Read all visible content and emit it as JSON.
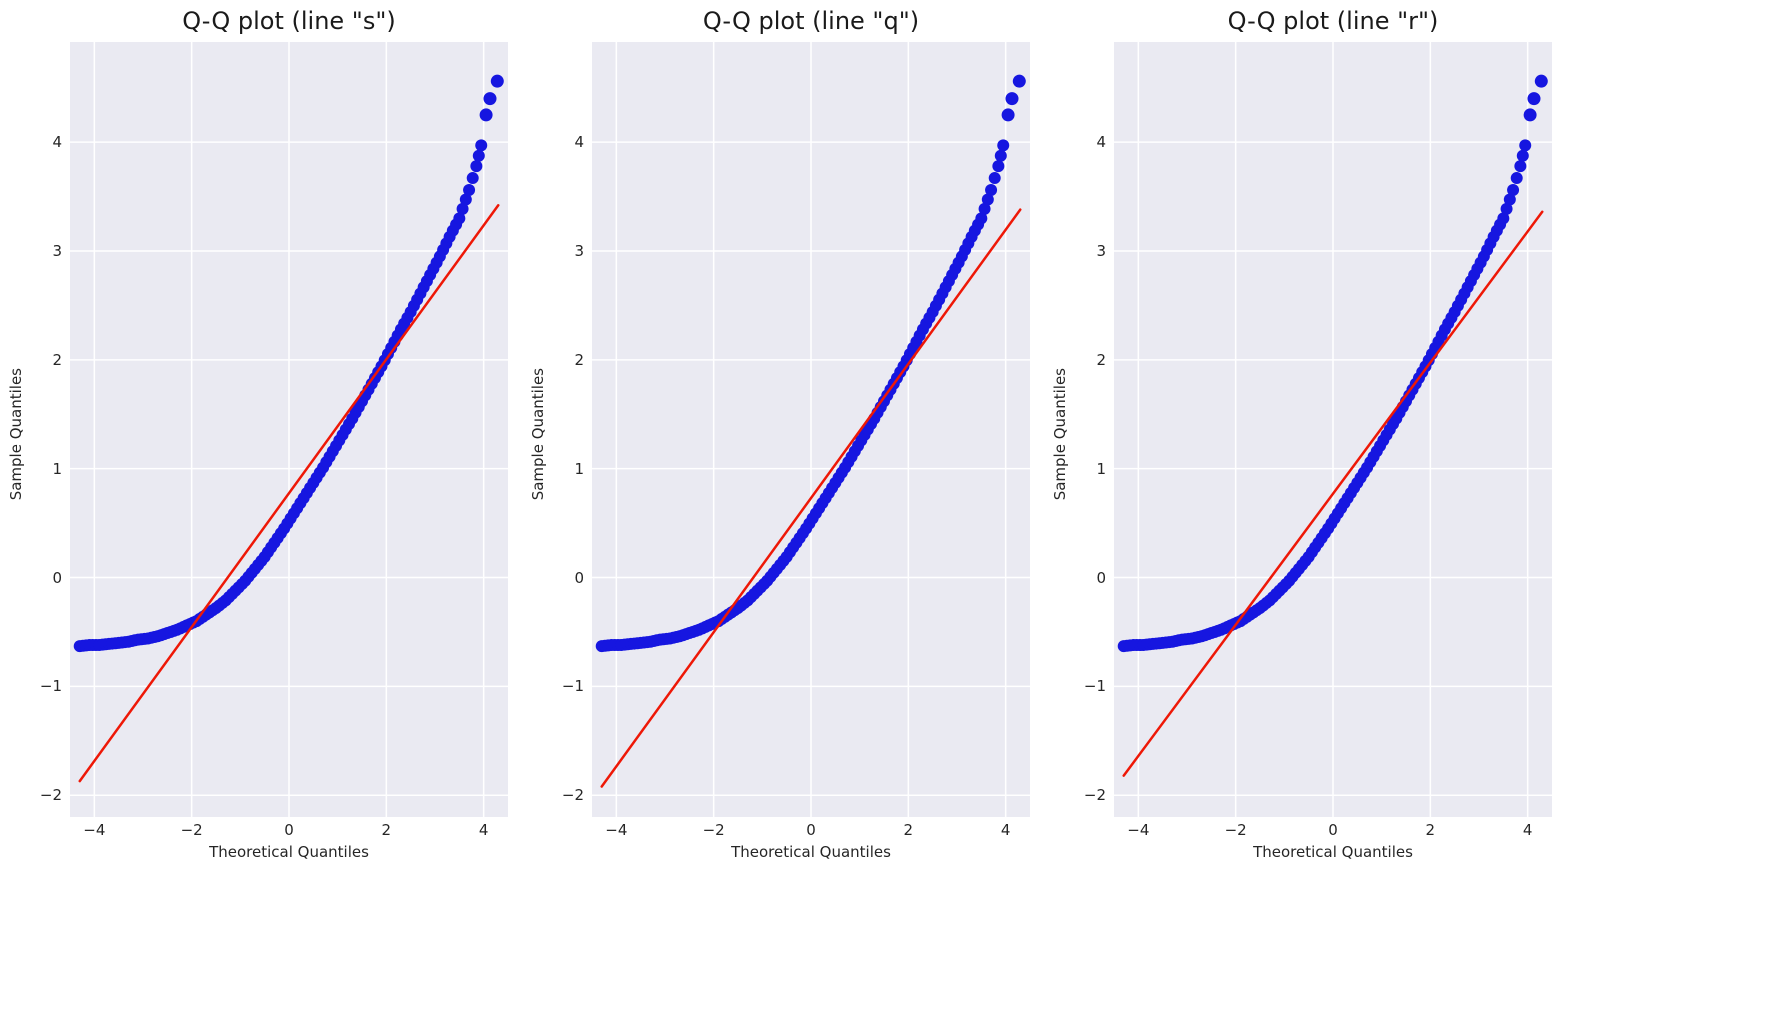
{
  "figure": {
    "background": "#ffffff",
    "plot_background": "#eaeaf2",
    "gridline_color": "#ffffff",
    "marker_color": "#1616e0",
    "ref_line_color": "#ee1807"
  },
  "chart_data": [
    {
      "type": "scatter",
      "title": "Q-Q plot (line \"s\")",
      "xlabel": "Theoretical Quantiles",
      "ylabel": "Sample Quantiles",
      "xlim": [
        -4.5,
        4.5
      ],
      "ylim": [
        -2.2,
        4.92
      ],
      "xticks": [
        -4,
        -2,
        0,
        2,
        4
      ],
      "yticks": [
        -2,
        -1,
        0,
        1,
        2,
        3,
        4
      ],
      "grid": true,
      "legend": "none",
      "background": "#eaeaf2",
      "gridline_color": "#ffffff",
      "marker_color": "#1616e0",
      "line": {
        "type": "s",
        "color": "#ee1807",
        "x1": -4.3,
        "y1": -1.87,
        "x2": 4.3,
        "y2": 3.42
      },
      "points": [
        [
          -4.3,
          -0.63
        ],
        [
          -4.1,
          -0.62
        ],
        [
          -3.9,
          -0.62
        ],
        [
          -3.7,
          -0.61
        ],
        [
          -3.5,
          -0.6
        ],
        [
          -3.3,
          -0.59
        ],
        [
          -3.1,
          -0.57
        ],
        [
          -2.9,
          -0.56
        ],
        [
          -2.7,
          -0.54
        ],
        [
          -2.5,
          -0.51
        ],
        [
          -2.3,
          -0.48
        ],
        [
          -2.1,
          -0.44
        ],
        [
          -1.9,
          -0.4
        ],
        [
          -1.7,
          -0.34
        ],
        [
          -1.5,
          -0.28
        ],
        [
          -1.3,
          -0.21
        ],
        [
          -1.1,
          -0.12
        ],
        [
          -0.9,
          -0.03
        ],
        [
          -0.7,
          0.08
        ],
        [
          -0.5,
          0.19
        ],
        [
          -0.3,
          0.32
        ],
        [
          -0.1,
          0.45
        ],
        [
          0.1,
          0.59
        ],
        [
          0.3,
          0.73
        ],
        [
          0.5,
          0.87
        ],
        [
          0.7,
          1.01
        ],
        [
          0.9,
          1.16
        ],
        [
          1.1,
          1.31
        ],
        [
          1.3,
          1.46
        ],
        [
          1.5,
          1.62
        ],
        [
          1.7,
          1.78
        ],
        [
          1.9,
          1.94
        ],
        [
          2.1,
          2.11
        ],
        [
          2.3,
          2.28
        ],
        [
          2.5,
          2.44
        ],
        [
          2.7,
          2.61
        ],
        [
          2.9,
          2.78
        ],
        [
          3.1,
          2.95
        ],
        [
          3.3,
          3.13
        ],
        [
          3.5,
          3.3
        ],
        [
          3.7,
          3.56
        ],
        [
          3.85,
          3.78
        ],
        [
          3.95,
          3.97
        ]
      ],
      "outliers": [
        [
          4.05,
          4.25
        ],
        [
          4.13,
          4.4
        ],
        [
          4.28,
          4.56
        ]
      ]
    },
    {
      "type": "scatter",
      "title": "Q-Q plot (line \"q\")",
      "xlabel": "Theoretical Quantiles",
      "ylabel": "Sample Quantiles",
      "xlim": [
        -4.5,
        4.5
      ],
      "ylim": [
        -2.2,
        4.92
      ],
      "xticks": [
        -4,
        -2,
        0,
        2,
        4
      ],
      "yticks": [
        -2,
        -1,
        0,
        1,
        2,
        3,
        4
      ],
      "grid": true,
      "legend": "none",
      "background": "#eaeaf2",
      "gridline_color": "#ffffff",
      "marker_color": "#1616e0",
      "line": {
        "type": "q",
        "color": "#ee1807",
        "x1": -4.3,
        "y1": -1.92,
        "x2": 4.3,
        "y2": 3.38
      },
      "points": [
        [
          -4.3,
          -0.63
        ],
        [
          -4.1,
          -0.62
        ],
        [
          -3.9,
          -0.62
        ],
        [
          -3.7,
          -0.61
        ],
        [
          -3.5,
          -0.6
        ],
        [
          -3.3,
          -0.59
        ],
        [
          -3.1,
          -0.57
        ],
        [
          -2.9,
          -0.56
        ],
        [
          -2.7,
          -0.54
        ],
        [
          -2.5,
          -0.51
        ],
        [
          -2.3,
          -0.48
        ],
        [
          -2.1,
          -0.44
        ],
        [
          -1.9,
          -0.4
        ],
        [
          -1.7,
          -0.34
        ],
        [
          -1.5,
          -0.28
        ],
        [
          -1.3,
          -0.21
        ],
        [
          -1.1,
          -0.12
        ],
        [
          -0.9,
          -0.03
        ],
        [
          -0.7,
          0.08
        ],
        [
          -0.5,
          0.19
        ],
        [
          -0.3,
          0.32
        ],
        [
          -0.1,
          0.45
        ],
        [
          0.1,
          0.59
        ],
        [
          0.3,
          0.73
        ],
        [
          0.5,
          0.87
        ],
        [
          0.7,
          1.01
        ],
        [
          0.9,
          1.16
        ],
        [
          1.1,
          1.31
        ],
        [
          1.3,
          1.46
        ],
        [
          1.5,
          1.62
        ],
        [
          1.7,
          1.78
        ],
        [
          1.9,
          1.94
        ],
        [
          2.1,
          2.11
        ],
        [
          2.3,
          2.28
        ],
        [
          2.5,
          2.44
        ],
        [
          2.7,
          2.61
        ],
        [
          2.9,
          2.78
        ],
        [
          3.1,
          2.95
        ],
        [
          3.3,
          3.13
        ],
        [
          3.5,
          3.3
        ],
        [
          3.7,
          3.56
        ],
        [
          3.85,
          3.78
        ],
        [
          3.95,
          3.97
        ]
      ],
      "outliers": [
        [
          4.05,
          4.25
        ],
        [
          4.13,
          4.4
        ],
        [
          4.28,
          4.56
        ]
      ]
    },
    {
      "type": "scatter",
      "title": "Q-Q plot (line \"r\")",
      "xlabel": "Theoretical Quantiles",
      "ylabel": "Sample Quantiles",
      "xlim": [
        -4.5,
        4.5
      ],
      "ylim": [
        -2.2,
        4.92
      ],
      "xticks": [
        -4,
        -2,
        0,
        2,
        4
      ],
      "yticks": [
        -2,
        -1,
        0,
        1,
        2,
        3,
        4
      ],
      "grid": true,
      "legend": "none",
      "background": "#eaeaf2",
      "gridline_color": "#ffffff",
      "marker_color": "#1616e0",
      "line": {
        "type": "r",
        "color": "#ee1807",
        "x1": -4.3,
        "y1": -1.82,
        "x2": 4.3,
        "y2": 3.36
      },
      "points": [
        [
          -4.3,
          -0.63
        ],
        [
          -4.1,
          -0.62
        ],
        [
          -3.9,
          -0.62
        ],
        [
          -3.7,
          -0.61
        ],
        [
          -3.5,
          -0.6
        ],
        [
          -3.3,
          -0.59
        ],
        [
          -3.1,
          -0.57
        ],
        [
          -2.9,
          -0.56
        ],
        [
          -2.7,
          -0.54
        ],
        [
          -2.5,
          -0.51
        ],
        [
          -2.3,
          -0.48
        ],
        [
          -2.1,
          -0.44
        ],
        [
          -1.9,
          -0.4
        ],
        [
          -1.7,
          -0.34
        ],
        [
          -1.5,
          -0.28
        ],
        [
          -1.3,
          -0.21
        ],
        [
          -1.1,
          -0.12
        ],
        [
          -0.9,
          -0.03
        ],
        [
          -0.7,
          0.08
        ],
        [
          -0.5,
          0.19
        ],
        [
          -0.3,
          0.32
        ],
        [
          -0.1,
          0.45
        ],
        [
          0.1,
          0.59
        ],
        [
          0.3,
          0.73
        ],
        [
          0.5,
          0.87
        ],
        [
          0.7,
          1.01
        ],
        [
          0.9,
          1.16
        ],
        [
          1.1,
          1.31
        ],
        [
          1.3,
          1.46
        ],
        [
          1.5,
          1.62
        ],
        [
          1.7,
          1.78
        ],
        [
          1.9,
          1.94
        ],
        [
          2.1,
          2.11
        ],
        [
          2.3,
          2.28
        ],
        [
          2.5,
          2.44
        ],
        [
          2.7,
          2.61
        ],
        [
          2.9,
          2.78
        ],
        [
          3.1,
          2.95
        ],
        [
          3.3,
          3.13
        ],
        [
          3.5,
          3.3
        ],
        [
          3.7,
          3.56
        ],
        [
          3.85,
          3.78
        ],
        [
          3.95,
          3.97
        ]
      ],
      "outliers": [
        [
          4.05,
          4.25
        ],
        [
          4.13,
          4.4
        ],
        [
          4.28,
          4.56
        ]
      ]
    }
  ]
}
